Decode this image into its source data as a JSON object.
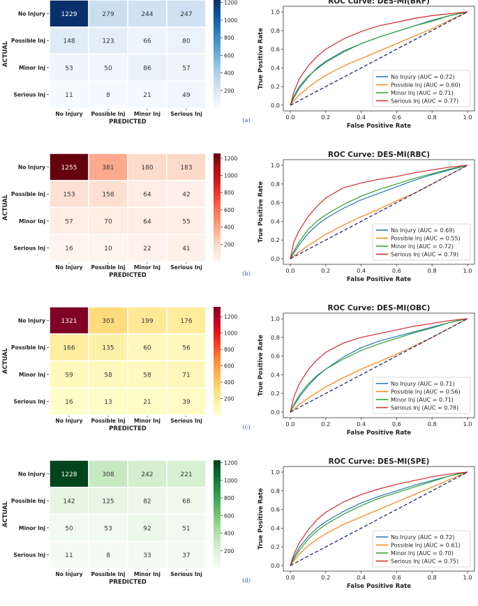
{
  "chart_data": [
    {
      "type": "heatmap",
      "panel": "(a)",
      "xlabel": "PREDICTED",
      "ylabel": "ACTUAL",
      "categories": [
        "No Injury",
        "Possible Inj",
        "Minor Inj",
        "Serious Inj"
      ],
      "matrix": [
        [
          1229,
          279,
          244,
          247
        ],
        [
          148,
          123,
          66,
          80
        ],
        [
          53,
          50,
          86,
          57
        ],
        [
          11,
          8,
          21,
          49
        ]
      ],
      "colorbar": {
        "min": 0,
        "max": 1229,
        "ticks": [
          200,
          400,
          600,
          800,
          1000,
          1200
        ]
      },
      "colormap": [
        "#f7fbff",
        "#deebf7",
        "#c6dbef",
        "#9ecae1",
        "#6baed6",
        "#4292c6",
        "#2171b5",
        "#08519c",
        "#08306b"
      ]
    },
    {
      "type": "line",
      "panel": "(a)",
      "title": "ROC Curve: DES-MI(BRF)",
      "xlabel": "False Positive Rate",
      "ylabel": "True Positive Rate",
      "xlim": [
        0,
        1
      ],
      "ylim": [
        0,
        1
      ],
      "ticks": [
        "0.0",
        "0.2",
        "0.4",
        "0.6",
        "0.8",
        "1.0"
      ],
      "legend_position": "lower-right",
      "series": [
        {
          "name": "No Injury (AUC = 0.72)",
          "color": "#1f77b4",
          "x": [
            0,
            0.02,
            0.05,
            0.1,
            0.15,
            0.2,
            0.3,
            0.4,
            0.5,
            0.6,
            0.7,
            0.8,
            0.9,
            1
          ],
          "y": [
            0,
            0.08,
            0.18,
            0.3,
            0.4,
            0.47,
            0.58,
            0.66,
            0.73,
            0.79,
            0.85,
            0.91,
            0.96,
            1
          ]
        },
        {
          "name": "Possible Inj (AUC = 0.60)",
          "color": "#ff7f0e",
          "x": [
            0,
            0.02,
            0.05,
            0.1,
            0.15,
            0.2,
            0.3,
            0.4,
            0.5,
            0.6,
            0.7,
            0.8,
            0.9,
            1
          ],
          "y": [
            0,
            0.05,
            0.11,
            0.19,
            0.26,
            0.32,
            0.42,
            0.5,
            0.58,
            0.66,
            0.74,
            0.82,
            0.91,
            1
          ]
        },
        {
          "name": "Minor Inj (AUC = 0.71)",
          "color": "#2ca02c",
          "x": [
            0,
            0.02,
            0.05,
            0.1,
            0.15,
            0.2,
            0.3,
            0.4,
            0.5,
            0.6,
            0.7,
            0.8,
            0.9,
            1
          ],
          "y": [
            0,
            0.1,
            0.2,
            0.31,
            0.39,
            0.46,
            0.57,
            0.66,
            0.73,
            0.79,
            0.85,
            0.9,
            0.96,
            1
          ]
        },
        {
          "name": "Serious Inj (AUC = 0.77)",
          "color": "#d62728",
          "x": [
            0,
            0.02,
            0.05,
            0.1,
            0.15,
            0.2,
            0.3,
            0.4,
            0.5,
            0.6,
            0.7,
            0.8,
            0.9,
            1
          ],
          "y": [
            0,
            0.14,
            0.28,
            0.42,
            0.52,
            0.6,
            0.71,
            0.79,
            0.85,
            0.89,
            0.93,
            0.96,
            0.98,
            1
          ]
        },
        {
          "name": "chance",
          "color": "#1a237e",
          "dashed": true,
          "x": [
            0,
            1
          ],
          "y": [
            0,
            1
          ]
        }
      ]
    },
    {
      "type": "heatmap",
      "panel": "(b)",
      "xlabel": "PREDICTED",
      "ylabel": "ACTUAL",
      "categories": [
        "No Injury",
        "Possible Inj",
        "Minor Inj",
        "Serious Inj"
      ],
      "matrix": [
        [
          1255,
          381,
          180,
          183
        ],
        [
          153,
          158,
          64,
          42
        ],
        [
          57,
          70,
          64,
          55
        ],
        [
          16,
          10,
          22,
          41
        ]
      ],
      "colorbar": {
        "min": 0,
        "max": 1255,
        "ticks": [
          200,
          400,
          600,
          800,
          1000,
          1200
        ]
      },
      "colormap": [
        "#fff5f0",
        "#fee0d2",
        "#fcbba1",
        "#fc9272",
        "#fb6a4a",
        "#ef3b2c",
        "#cb181d",
        "#a50f15",
        "#67000d"
      ]
    },
    {
      "type": "line",
      "panel": "(b)",
      "title": "ROC Curve: DES-MI(RBC)",
      "xlabel": "False Positive Rate",
      "ylabel": "True Positive Rate",
      "xlim": [
        0,
        1
      ],
      "ylim": [
        0,
        1
      ],
      "ticks": [
        "0.0",
        "0.2",
        "0.4",
        "0.6",
        "0.8",
        "1.0"
      ],
      "legend_position": "lower-right",
      "series": [
        {
          "name": "No Injury (AUC = 0.69)",
          "color": "#1f77b4",
          "x": [
            0,
            0.02,
            0.05,
            0.1,
            0.15,
            0.2,
            0.3,
            0.4,
            0.5,
            0.6,
            0.7,
            0.8,
            0.9,
            1
          ],
          "y": [
            0,
            0.06,
            0.15,
            0.27,
            0.36,
            0.43,
            0.54,
            0.63,
            0.7,
            0.77,
            0.84,
            0.9,
            0.95,
            1
          ]
        },
        {
          "name": "Possible Inj (AUC = 0.55)",
          "color": "#ff7f0e",
          "x": [
            0,
            0.02,
            0.05,
            0.1,
            0.15,
            0.2,
            0.3,
            0.4,
            0.5,
            0.6,
            0.7,
            0.8,
            0.9,
            1
          ],
          "y": [
            0,
            0.03,
            0.07,
            0.14,
            0.2,
            0.26,
            0.36,
            0.45,
            0.53,
            0.62,
            0.7,
            0.8,
            0.9,
            1
          ]
        },
        {
          "name": "Minor Inj (AUC = 0.72)",
          "color": "#2ca02c",
          "x": [
            0,
            0.02,
            0.05,
            0.1,
            0.15,
            0.2,
            0.3,
            0.4,
            0.5,
            0.6,
            0.7,
            0.8,
            0.9,
            1
          ],
          "y": [
            0,
            0.08,
            0.18,
            0.31,
            0.4,
            0.47,
            0.58,
            0.67,
            0.74,
            0.8,
            0.86,
            0.91,
            0.96,
            1
          ]
        },
        {
          "name": "Serious Inj (AUC = 0.79)",
          "color": "#d62728",
          "x": [
            0,
            0.02,
            0.05,
            0.1,
            0.15,
            0.2,
            0.3,
            0.4,
            0.5,
            0.6,
            0.7,
            0.8,
            0.9,
            1
          ],
          "y": [
            0,
            0.18,
            0.3,
            0.45,
            0.56,
            0.65,
            0.76,
            0.81,
            0.85,
            0.88,
            0.92,
            0.95,
            0.98,
            1
          ]
        },
        {
          "name": "chance",
          "color": "#1a237e",
          "dashed": true,
          "x": [
            0,
            1
          ],
          "y": [
            0,
            1
          ]
        }
      ]
    },
    {
      "type": "heatmap",
      "panel": "(c)",
      "xlabel": "PREDICTED",
      "ylabel": "ACTUAL",
      "categories": [
        "No Injury",
        "Possible Inj",
        "Minor Inj",
        "Serious Inj"
      ],
      "matrix": [
        [
          1321,
          303,
          199,
          176
        ],
        [
          166,
          135,
          60,
          56
        ],
        [
          59,
          58,
          58,
          71
        ],
        [
          16,
          13,
          21,
          39
        ]
      ],
      "colorbar": {
        "min": 0,
        "max": 1321,
        "ticks": [
          200,
          400,
          600,
          800,
          1000,
          1200
        ]
      },
      "colormap": [
        "#ffffcc",
        "#ffeda0",
        "#fed976",
        "#feb24c",
        "#fd8d3c",
        "#fc4e2a",
        "#e31a1c",
        "#bd0026",
        "#800026"
      ]
    },
    {
      "type": "line",
      "panel": "(c)",
      "title": "ROC Curve: DES-MI(OBC)",
      "xlabel": "False Positive Rate",
      "ylabel": "True Positive Rate",
      "xlim": [
        0,
        1
      ],
      "ylim": [
        0,
        1
      ],
      "ticks": [
        "0.0",
        "0.2",
        "0.4",
        "0.6",
        "0.8",
        "1.0"
      ],
      "legend_position": "lower-right",
      "series": [
        {
          "name": "No Injury (AUC = 0.71)",
          "color": "#1f77b4",
          "x": [
            0,
            0.02,
            0.05,
            0.1,
            0.15,
            0.2,
            0.3,
            0.4,
            0.5,
            0.6,
            0.7,
            0.8,
            0.9,
            1
          ],
          "y": [
            0,
            0.07,
            0.16,
            0.28,
            0.38,
            0.46,
            0.59,
            0.69,
            0.76,
            0.81,
            0.86,
            0.91,
            0.96,
            1
          ]
        },
        {
          "name": "Possible Inj (AUC = 0.56)",
          "color": "#ff7f0e",
          "x": [
            0,
            0.02,
            0.05,
            0.1,
            0.15,
            0.2,
            0.3,
            0.4,
            0.5,
            0.6,
            0.7,
            0.8,
            0.9,
            1
          ],
          "y": [
            0,
            0.03,
            0.08,
            0.15,
            0.21,
            0.27,
            0.37,
            0.46,
            0.54,
            0.62,
            0.71,
            0.8,
            0.9,
            1
          ]
        },
        {
          "name": "Minor Inj (AUC = 0.71)",
          "color": "#2ca02c",
          "x": [
            0,
            0.02,
            0.05,
            0.1,
            0.15,
            0.2,
            0.3,
            0.4,
            0.5,
            0.6,
            0.7,
            0.8,
            0.9,
            1
          ],
          "y": [
            0,
            0.08,
            0.18,
            0.3,
            0.39,
            0.46,
            0.57,
            0.66,
            0.73,
            0.79,
            0.85,
            0.9,
            0.96,
            1
          ]
        },
        {
          "name": "Serious Inj (AUC = 0.78)",
          "color": "#d62728",
          "x": [
            0,
            0.02,
            0.05,
            0.1,
            0.15,
            0.2,
            0.3,
            0.4,
            0.5,
            0.6,
            0.7,
            0.8,
            0.9,
            1
          ],
          "y": [
            0,
            0.16,
            0.3,
            0.45,
            0.56,
            0.64,
            0.74,
            0.8,
            0.84,
            0.88,
            0.92,
            0.95,
            0.98,
            1
          ]
        },
        {
          "name": "chance",
          "color": "#1a237e",
          "dashed": true,
          "x": [
            0,
            1
          ],
          "y": [
            0,
            1
          ]
        }
      ]
    },
    {
      "type": "heatmap",
      "panel": "(d)",
      "xlabel": "PREDICTED",
      "ylabel": "ACTUAL",
      "categories": [
        "No Injury",
        "Possible Inj",
        "Minor Inj",
        "Serious Inj"
      ],
      "matrix": [
        [
          1228,
          308,
          242,
          221
        ],
        [
          142,
          125,
          82,
          68
        ],
        [
          50,
          53,
          92,
          51
        ],
        [
          11,
          8,
          33,
          37
        ]
      ],
      "colorbar": {
        "min": 0,
        "max": 1228,
        "ticks": [
          200,
          400,
          600,
          800,
          1000,
          1200
        ]
      },
      "colormap": [
        "#f7fcf5",
        "#e5f5e0",
        "#c7e9c0",
        "#a1d99b",
        "#74c476",
        "#41ab5d",
        "#238b45",
        "#006d2c",
        "#00441b"
      ]
    },
    {
      "type": "line",
      "panel": "(d)",
      "title": "ROC Curve: DES-MI(SPE)",
      "xlabel": "False Positive Rate",
      "ylabel": "True Positive Rate",
      "xlim": [
        0,
        1
      ],
      "ylim": [
        0,
        1
      ],
      "ticks": [
        "0.0",
        "0.2",
        "0.4",
        "0.6",
        "0.8",
        "1.0"
      ],
      "legend_position": "lower-right",
      "series": [
        {
          "name": "No Injury (AUC = 0.72)",
          "color": "#1f77b4",
          "x": [
            0,
            0.02,
            0.05,
            0.1,
            0.15,
            0.2,
            0.3,
            0.4,
            0.5,
            0.6,
            0.7,
            0.8,
            0.9,
            1
          ],
          "y": [
            0,
            0.09,
            0.19,
            0.31,
            0.4,
            0.47,
            0.58,
            0.67,
            0.74,
            0.8,
            0.86,
            0.91,
            0.96,
            1
          ]
        },
        {
          "name": "Possible Inj (AUC = 0.61)",
          "color": "#ff7f0e",
          "x": [
            0,
            0.02,
            0.05,
            0.1,
            0.15,
            0.2,
            0.3,
            0.4,
            0.5,
            0.6,
            0.7,
            0.8,
            0.9,
            1
          ],
          "y": [
            0,
            0.05,
            0.12,
            0.21,
            0.28,
            0.34,
            0.44,
            0.52,
            0.6,
            0.68,
            0.76,
            0.84,
            0.92,
            1
          ]
        },
        {
          "name": "Minor Inj (AUC = 0.70)",
          "color": "#2ca02c",
          "x": [
            0,
            0.02,
            0.05,
            0.1,
            0.15,
            0.2,
            0.3,
            0.4,
            0.5,
            0.6,
            0.7,
            0.8,
            0.9,
            1
          ],
          "y": [
            0,
            0.07,
            0.16,
            0.28,
            0.37,
            0.44,
            0.55,
            0.64,
            0.72,
            0.78,
            0.84,
            0.9,
            0.96,
            1
          ]
        },
        {
          "name": "Serious Inj (AUC = 0.75)",
          "color": "#d62728",
          "x": [
            0,
            0.02,
            0.05,
            0.1,
            0.15,
            0.2,
            0.3,
            0.4,
            0.5,
            0.6,
            0.7,
            0.8,
            0.9,
            1
          ],
          "y": [
            0,
            0.12,
            0.24,
            0.38,
            0.49,
            0.57,
            0.68,
            0.76,
            0.82,
            0.87,
            0.91,
            0.95,
            0.98,
            1
          ]
        },
        {
          "name": "chance",
          "color": "#1a237e",
          "dashed": true,
          "x": [
            0,
            1
          ],
          "y": [
            0,
            1
          ]
        }
      ]
    }
  ]
}
